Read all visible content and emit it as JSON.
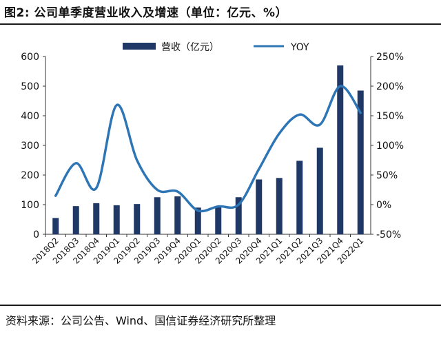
{
  "figure": {
    "title": "图2: 公司单季度营业收入及增速（单位：亿元、%）",
    "source": "资料来源：公司公告、Wind、国信证券经济研究所整理"
  },
  "colors": {
    "bar": "#1f3866",
    "line": "#2e75b6"
  },
  "chart_data": {
    "type": "bar+line",
    "categories": [
      "2018Q2",
      "2018Q3",
      "2018Q4",
      "2019Q1",
      "2019Q2",
      "2019Q3",
      "2019Q4",
      "2020Q1",
      "2020Q2",
      "2020Q3",
      "2020Q4",
      "2021Q1",
      "2021Q2",
      "2021Q3",
      "2021Q4",
      "2022Q1"
    ],
    "series": [
      {
        "name": "营收（亿元）",
        "type": "bar",
        "axis": "left",
        "values": [
          55,
          95,
          105,
          98,
          102,
          125,
          128,
          90,
          95,
          125,
          185,
          190,
          248,
          292,
          570,
          485
        ]
      },
      {
        "name": "YOY",
        "type": "line",
        "axis": "right",
        "values": [
          15,
          70,
          28,
          168,
          75,
          25,
          22,
          -10,
          -3,
          0,
          60,
          120,
          152,
          135,
          200,
          155
        ]
      }
    ],
    "y_left": {
      "lim": [
        0,
        600
      ],
      "ticks": [
        0,
        100,
        200,
        300,
        400,
        500,
        600
      ],
      "tick_labels": [
        "0",
        "100",
        "200",
        "300",
        "400",
        "500",
        "600"
      ]
    },
    "y_right": {
      "lim": [
        -50,
        250
      ],
      "ticks": [
        -50,
        0,
        50,
        100,
        150,
        200,
        250
      ],
      "tick_labels": [
        "-50%",
        "0%",
        "50%",
        "100%",
        "150%",
        "200%",
        "250%"
      ]
    },
    "legend": {
      "placement": "top-center"
    },
    "grid": false
  }
}
